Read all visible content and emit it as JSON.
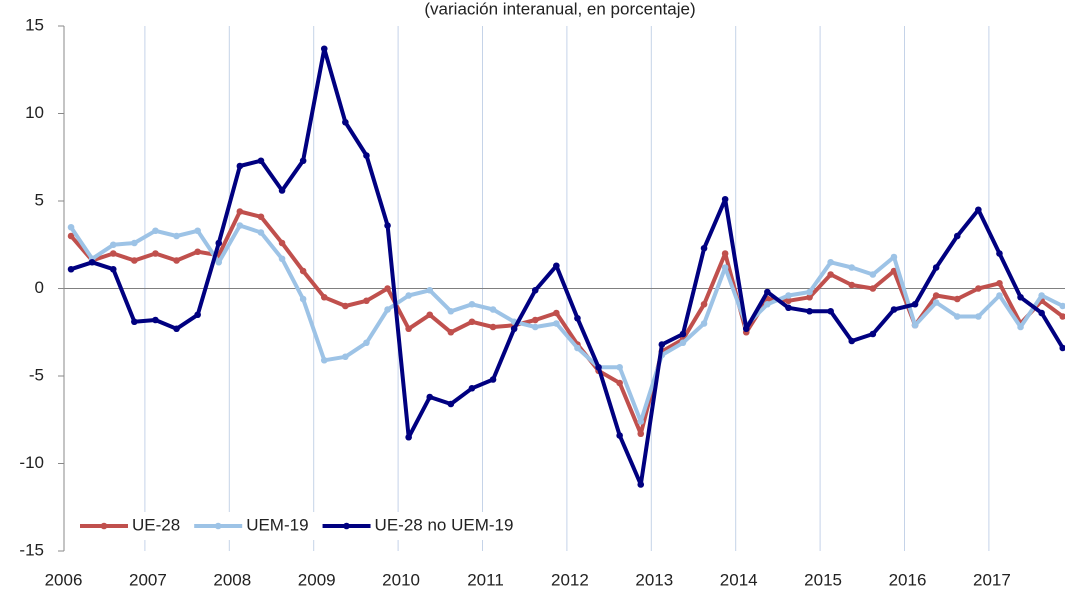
{
  "chart_data": {
    "type": "line",
    "subtitle": "(variación interanual, en porcentaje)",
    "categories": [
      "2006",
      null,
      null,
      null,
      "2007",
      null,
      null,
      null,
      "2008",
      null,
      null,
      null,
      "2009",
      null,
      null,
      null,
      "2010",
      null,
      null,
      null,
      "2011",
      null,
      null,
      null,
      "2012",
      null,
      null,
      null,
      "2013",
      null,
      null,
      null,
      "2014",
      null,
      null,
      null,
      "2015",
      null,
      null,
      null,
      "2016",
      null,
      null,
      null,
      "2017",
      null,
      null,
      null
    ],
    "series": [
      {
        "name": "UE-28",
        "color": "#c0504d",
        "values": [
          3.0,
          1.6,
          2.0,
          1.6,
          2.0,
          1.6,
          2.1,
          1.9,
          4.4,
          4.1,
          2.6,
          1.0,
          -0.5,
          -1.0,
          -0.7,
          0.0,
          -2.3,
          -1.5,
          -2.5,
          -1.9,
          -2.2,
          -2.1,
          -1.8,
          -1.4,
          -3.2,
          -4.7,
          -5.4,
          -8.3,
          -3.6,
          -2.9,
          -0.9,
          2.0,
          -2.5,
          -0.6,
          -0.7,
          -0.5,
          0.8,
          0.2,
          0.0,
          1.0,
          -2.1,
          -0.4,
          -0.6,
          0.0,
          0.3,
          -2.0,
          -0.7,
          -1.6
        ]
      },
      {
        "name": "UEM-19",
        "color": "#9dc3e6",
        "values": [
          3.5,
          1.7,
          2.5,
          2.6,
          3.3,
          3.0,
          3.3,
          1.5,
          3.6,
          3.2,
          1.7,
          -0.6,
          -4.1,
          -3.9,
          -3.1,
          -1.2,
          -0.4,
          -0.1,
          -1.3,
          -0.9,
          -1.2,
          -1.9,
          -2.2,
          -2.0,
          -3.4,
          -4.5,
          -4.5,
          -7.6,
          -3.8,
          -3.1,
          -2.0,
          1.2,
          -2.1,
          -0.9,
          -0.4,
          -0.2,
          1.5,
          1.2,
          0.8,
          1.8,
          -2.1,
          -0.8,
          -1.6,
          -1.6,
          -0.4,
          -2.2,
          -0.4,
          -1.0
        ]
      },
      {
        "name": "UE-28 no UEM-19",
        "color": "#000080",
        "values": [
          1.1,
          1.5,
          1.1,
          -1.9,
          -1.8,
          -2.3,
          -1.5,
          2.6,
          7.0,
          7.3,
          5.6,
          7.3,
          13.7,
          9.5,
          7.6,
          3.6,
          -8.5,
          -6.2,
          -6.6,
          -5.7,
          -5.2,
          -2.3,
          -0.1,
          1.3,
          -1.7,
          -4.5,
          -8.4,
          -11.2,
          -3.2,
          -2.6,
          2.3,
          5.1,
          -2.3,
          -0.2,
          -1.1,
          -1.3,
          -1.3,
          -3.0,
          -2.6,
          -1.2,
          -0.9,
          1.2,
          3.0,
          4.5,
          2.0,
          -0.5,
          -1.4,
          -3.4
        ]
      }
    ],
    "ylim": [
      -15,
      15
    ],
    "yticks": [
      -15,
      -10,
      -5,
      0,
      5,
      10,
      15
    ],
    "grid": true,
    "legend": "lower left"
  }
}
